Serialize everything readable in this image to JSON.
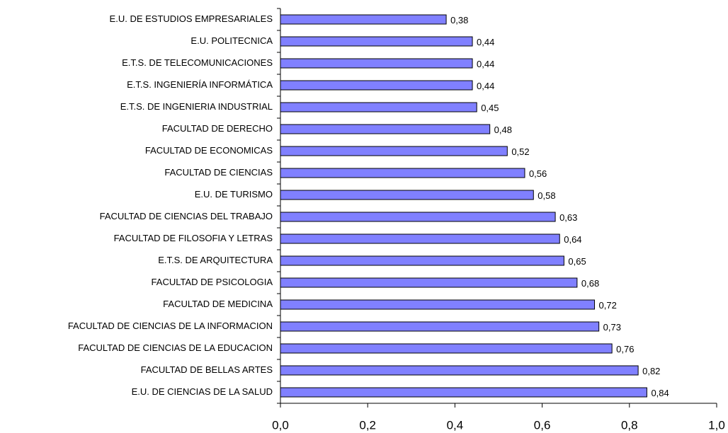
{
  "chart_data": {
    "type": "barh",
    "categories": [
      "E.U. DE ESTUDIOS EMPRESARIALES",
      "E.U. POLITECNICA",
      "E.T.S. DE TELECOMUNICACIONES",
      "E.T.S. INGENIERÍA INFORMÁTICA",
      "E.T.S. DE INGENIERIA INDUSTRIAL",
      "FACULTAD DE DERECHO",
      "FACULTAD DE ECONOMICAS",
      "FACULTAD DE CIENCIAS",
      "E.U. DE TURISMO",
      "FACULTAD DE CIENCIAS DEL TRABAJO",
      "FACULTAD DE FILOSOFIA Y LETRAS",
      "E.T.S. DE ARQUITECTURA",
      "FACULTAD DE PSICOLOGIA",
      "FACULTAD DE MEDICINA",
      "FACULTAD DE CIENCIAS DE LA INFORMACION",
      "FACULTAD DE CIENCIAS DE LA EDUCACION",
      "FACULTAD DE BELLAS ARTES",
      "E.U. DE CIENCIAS DE LA SALUD"
    ],
    "values": [
      0.38,
      0.44,
      0.44,
      0.44,
      0.45,
      0.48,
      0.52,
      0.56,
      0.58,
      0.63,
      0.64,
      0.65,
      0.68,
      0.72,
      0.73,
      0.76,
      0.82,
      0.84
    ],
    "value_labels": [
      "0,38",
      "0,44",
      "0,44",
      "0,44",
      "0,45",
      "0,48",
      "0,52",
      "0,56",
      "0,58",
      "0,63",
      "0,64",
      "0,65",
      "0,68",
      "0,72",
      "0,73",
      "0,76",
      "0,82",
      "0,84"
    ],
    "color": "#8080ff",
    "xlim": [
      0,
      1
    ],
    "xticks": [
      {
        "value": 0,
        "label": "0,0"
      },
      {
        "value": 0.2,
        "label": "0,2"
      },
      {
        "value": 0.4,
        "label": "0,4"
      },
      {
        "value": 0.6,
        "label": "0,6"
      },
      {
        "value": 0.8,
        "label": "0,8"
      },
      {
        "value": 1,
        "label": "1,0"
      }
    ],
    "grid": false
  }
}
